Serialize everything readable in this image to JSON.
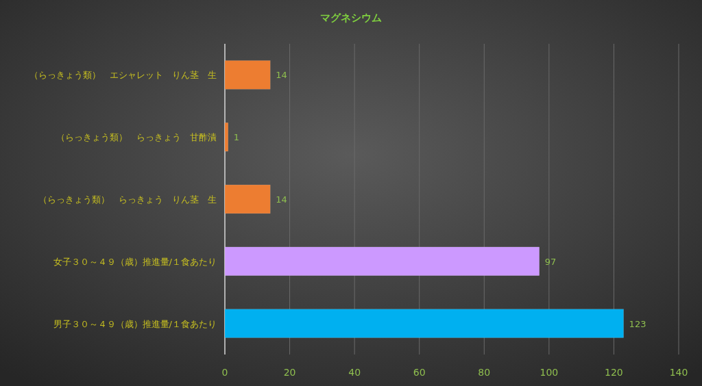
{
  "chart_data": {
    "type": "bar",
    "orientation": "horizontal",
    "title": "マグネシウム",
    "categories": [
      "（らっきょう類）　エシャレット　りん茎　生",
      "（らっきょう類）　らっきょう　甘酢漬",
      "（らっきょう類）　らっきょう　りん茎　生",
      "女子３０～４９（歳）推進量/１食あたり",
      "男子３０～４９（歳）推進量/１食あたり"
    ],
    "values": [
      14,
      1,
      14,
      97,
      123
    ],
    "colors": [
      "#ed7d31",
      "#ed7d31",
      "#ed7d31",
      "#cc99ff",
      "#00b0f0"
    ],
    "xlim": [
      0,
      140
    ],
    "xticks": [
      0,
      20,
      40,
      60,
      80,
      100,
      120,
      140
    ],
    "grid": "x",
    "data_labels": true
  }
}
